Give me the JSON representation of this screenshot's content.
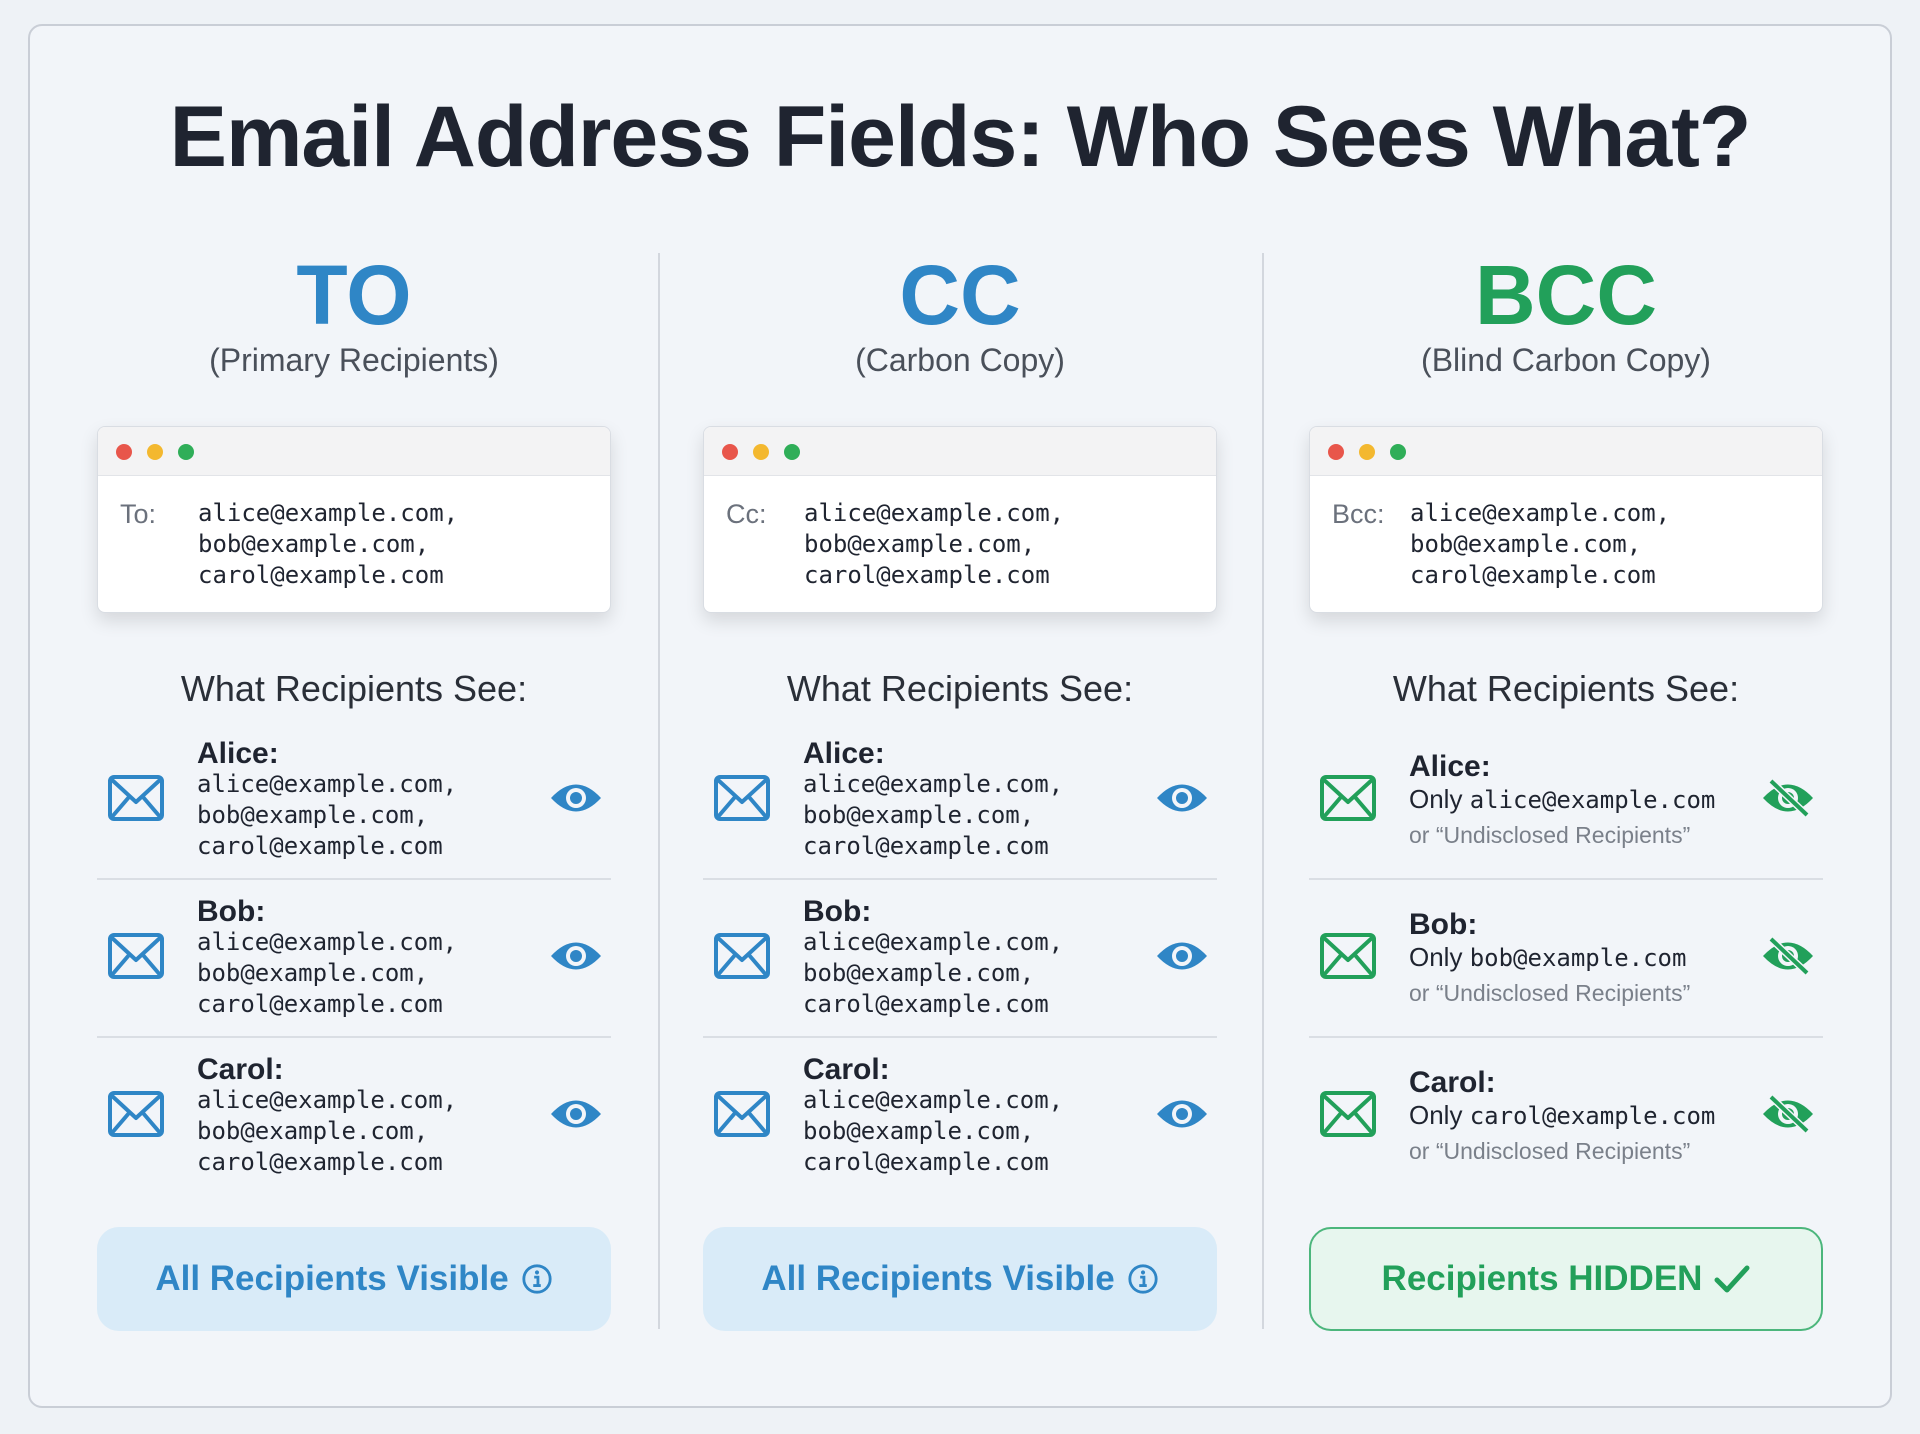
{
  "title": "Email Address Fields: Who Sees What?",
  "colors": {
    "blue": "#2f86c6",
    "green": "#22a05a",
    "dot_red": "#e8564b",
    "dot_yellow": "#f3b82f",
    "dot_green": "#2fae58"
  },
  "columns": [
    {
      "heading": "TO",
      "subtitle": "(Primary Recipients)",
      "field_label": "To:",
      "field_addresses": [
        "alice@example.com,",
        "bob@example.com,",
        "carol@example.com"
      ],
      "see_label": "What Recipients See:",
      "rows": [
        {
          "name": "Alice:",
          "lines": [
            "alice@example.com,",
            "bob@example.com,",
            "carol@example.com"
          ],
          "icon": "eye-icon"
        },
        {
          "name": "Bob:",
          "lines": [
            "alice@example.com,",
            "bob@example.com,",
            "carol@example.com"
          ],
          "icon": "eye-icon"
        },
        {
          "name": "Carol:",
          "lines": [
            "alice@example.com,",
            "bob@example.com,",
            "carol@example.com"
          ],
          "icon": "eye-icon"
        }
      ],
      "button": "All Recipients Visible",
      "button_icon": "info-icon"
    },
    {
      "heading": "CC",
      "subtitle": "(Carbon Copy)",
      "field_label": "Cc:",
      "field_addresses": [
        "alice@example.com,",
        "bob@example.com,",
        "carol@example.com"
      ],
      "see_label": "What Recipients See:",
      "rows": [
        {
          "name": "Alice:",
          "lines": [
            "alice@example.com,",
            "bob@example.com,",
            "carol@example.com"
          ],
          "icon": "eye-icon"
        },
        {
          "name": "Bob:",
          "lines": [
            "alice@example.com,",
            "bob@example.com,",
            "carol@example.com"
          ],
          "icon": "eye-icon"
        },
        {
          "name": "Carol:",
          "lines": [
            "alice@example.com,",
            "bob@example.com,",
            "carol@example.com"
          ],
          "icon": "eye-icon"
        }
      ],
      "button": "All Recipients Visible",
      "button_icon": "info-icon"
    },
    {
      "heading": "BCC",
      "subtitle": "(Blind Carbon Copy)",
      "field_label": "Bcc:",
      "field_addresses": [
        "alice@example.com,",
        "bob@example.com,",
        "carol@example.com"
      ],
      "see_label": "What Recipients See:",
      "rows": [
        {
          "name": "Alice:",
          "only": "Only",
          "address": "alice@example.com",
          "alt": "or “Undisclosed Recipients”",
          "icon": "eye-slash-icon"
        },
        {
          "name": "Bob:",
          "only": "Only",
          "address": "bob@example.com",
          "alt": "or “Undisclosed Recipients”",
          "icon": "eye-slash-icon"
        },
        {
          "name": "Carol:",
          "only": "Only",
          "address": "carol@example.com",
          "alt": "or “Undisclosed Recipients”",
          "icon": "eye-slash-icon"
        }
      ],
      "button": "Recipients HIDDEN",
      "button_icon": "checkmark-icon"
    }
  ]
}
